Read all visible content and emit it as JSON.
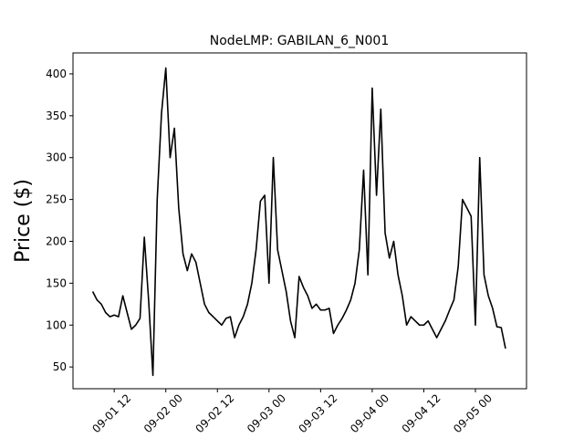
{
  "chart_data": {
    "type": "line",
    "title": "NodeLMP: GABILAN_6_N001",
    "ylabel": "Price ($)",
    "color": "#000000",
    "x": [
      "09-01 07",
      "09-01 08",
      "09-01 09",
      "09-01 10",
      "09-01 11",
      "09-01 12",
      "09-01 13",
      "09-01 14",
      "09-01 15",
      "09-01 16",
      "09-01 17",
      "09-01 18",
      "09-01 19",
      "09-01 20",
      "09-01 21",
      "09-01 22",
      "09-01 23",
      "09-02 00",
      "09-02 01",
      "09-02 02",
      "09-02 03",
      "09-02 04",
      "09-02 05",
      "09-02 06",
      "09-02 07",
      "09-02 08",
      "09-02 09",
      "09-02 10",
      "09-02 11",
      "09-02 12",
      "09-02 13",
      "09-02 14",
      "09-02 15",
      "09-02 16",
      "09-02 17",
      "09-02 18",
      "09-02 19",
      "09-02 20",
      "09-02 21",
      "09-02 22",
      "09-02 23",
      "09-03 00",
      "09-03 01",
      "09-03 02",
      "09-03 03",
      "09-03 04",
      "09-03 05",
      "09-03 06",
      "09-03 07",
      "09-03 08",
      "09-03 09",
      "09-03 10",
      "09-03 11",
      "09-03 12",
      "09-03 13",
      "09-03 14",
      "09-03 15",
      "09-03 16",
      "09-03 17",
      "09-03 18",
      "09-03 19",
      "09-03 20",
      "09-03 21",
      "09-03 22",
      "09-03 23",
      "09-04 00",
      "09-04 01",
      "09-04 02",
      "09-04 03",
      "09-04 04",
      "09-04 05",
      "09-04 06",
      "09-04 07",
      "09-04 08",
      "09-04 09",
      "09-04 10",
      "09-04 11",
      "09-04 12",
      "09-04 13",
      "09-04 14",
      "09-04 15",
      "09-04 16",
      "09-04 17",
      "09-04 18",
      "09-04 19",
      "09-04 20",
      "09-04 21",
      "09-04 22",
      "09-04 23",
      "09-05 00",
      "09-05 01",
      "09-05 02",
      "09-05 03",
      "09-05 04",
      "09-05 05",
      "09-05 06",
      "09-05 07"
    ],
    "values": [
      140,
      130,
      125,
      115,
      110,
      112,
      110,
      135,
      115,
      95,
      100,
      108,
      205,
      130,
      40,
      250,
      353,
      407,
      300,
      335,
      240,
      185,
      165,
      185,
      175,
      150,
      125,
      115,
      110,
      105,
      100,
      108,
      110,
      85,
      100,
      110,
      125,
      150,
      190,
      248,
      255,
      150,
      300,
      190,
      165,
      140,
      105,
      85,
      158,
      145,
      135,
      120,
      125,
      118,
      118,
      120,
      90,
      100,
      108,
      118,
      130,
      150,
      190,
      285,
      160,
      383,
      255,
      358,
      210,
      180,
      200,
      160,
      135,
      100,
      110,
      105,
      100,
      100,
      105,
      95,
      85,
      95,
      105,
      118,
      130,
      170,
      250,
      240,
      230,
      100,
      300,
      160,
      135,
      120,
      98,
      97,
      72
    ],
    "xlim": [
      "09-01 02:25",
      "09-05 11:53"
    ],
    "xticks": [
      "09-01 12",
      "09-02 00",
      "09-02 12",
      "09-03 00",
      "09-03 12",
      "09-04 00",
      "09-04 12",
      "09-05 00"
    ],
    "ylim": [
      24,
      425
    ],
    "yticks": [
      50,
      100,
      150,
      200,
      250,
      300,
      350,
      400
    ]
  }
}
